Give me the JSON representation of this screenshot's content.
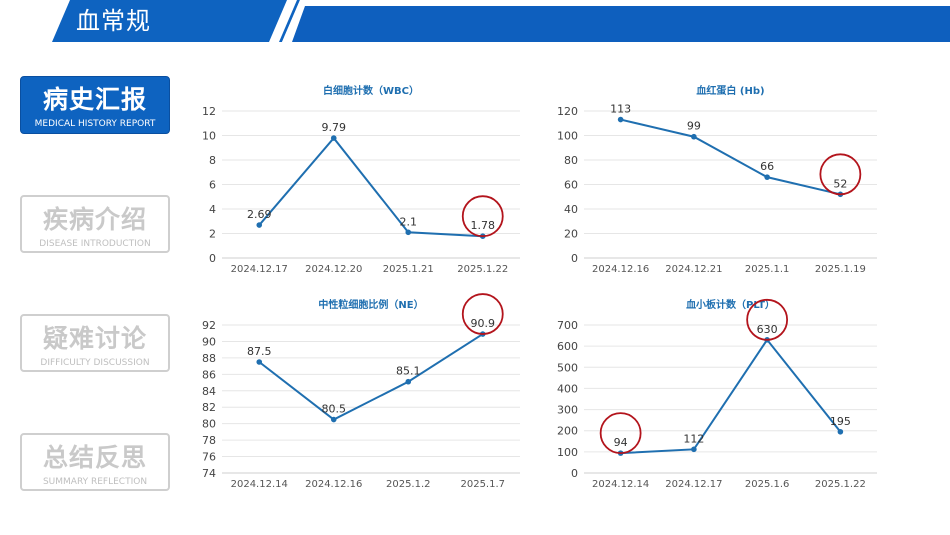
{
  "header": {
    "title": "血常规"
  },
  "sidebar": {
    "items": [
      {
        "title": "病史汇报",
        "subtitle": "MEDICAL HISTORY REPORT",
        "active": true
      },
      {
        "title": "疾病介绍",
        "subtitle": "DISEASE INTRODUCTION",
        "active": false
      },
      {
        "title": "疑难讨论",
        "subtitle": "DIFFICULTY DISCUSSION",
        "active": false
      },
      {
        "title": "总结反思",
        "subtitle": "SUMMARY REFLECTION",
        "active": false
      }
    ]
  },
  "colors": {
    "brand_blue": "#0e63c0",
    "line": "#1f6fb0",
    "highlight_circle": "#b3141c",
    "title": "#1f6fb0"
  },
  "chart_data": [
    {
      "type": "line",
      "title": "白细胞计数（WBC）",
      "categories": [
        "2024.12.17",
        "2024.12.20",
        "2025.1.21",
        "2025.1.22"
      ],
      "values": [
        2.69,
        9.79,
        2.1,
        1.78
      ],
      "labels": [
        "2.69",
        "9.79",
        "2.1",
        "1.78"
      ],
      "ylim": [
        0,
        12
      ],
      "yticks": [
        0,
        2,
        4,
        6,
        8,
        10,
        12
      ],
      "highlight_index": 3,
      "grid": true
    },
    {
      "type": "line",
      "title": "血红蛋白 (Hb)",
      "categories": [
        "2024.12.16",
        "2024.12.21",
        "2025.1.1",
        "2025.1.19"
      ],
      "values": [
        113,
        99,
        66,
        52
      ],
      "labels": [
        "113",
        "99",
        "66",
        "52"
      ],
      "ylim": [
        0,
        120
      ],
      "yticks": [
        0,
        20,
        40,
        60,
        80,
        100,
        120
      ],
      "highlight_index": 3,
      "grid": true
    },
    {
      "type": "line",
      "title": "中性粒细胞比例（NE）",
      "categories": [
        "2024.12.14",
        "2024.12.16",
        "2025.1.2",
        "2025.1.7"
      ],
      "values": [
        87.5,
        80.5,
        85.1,
        90.9
      ],
      "labels": [
        "87.5",
        "80.5",
        "85.1",
        "90.9"
      ],
      "ylim": [
        74,
        92
      ],
      "yticks": [
        74,
        76,
        78,
        80,
        82,
        84,
        86,
        88,
        90,
        92
      ],
      "highlight_index": 3,
      "grid": true
    },
    {
      "type": "line",
      "title": "血小板计数（PLT）",
      "categories": [
        "2024.12.14",
        "2024.12.17",
        "2025.1.6",
        "2025.1.22"
      ],
      "values": [
        94,
        112,
        630,
        195
      ],
      "labels": [
        "94",
        "112",
        "630",
        "195"
      ],
      "ylim": [
        0,
        700
      ],
      "yticks": [
        0,
        100,
        200,
        300,
        400,
        500,
        600,
        700
      ],
      "highlight_index": [
        0,
        2
      ],
      "grid": true
    }
  ]
}
